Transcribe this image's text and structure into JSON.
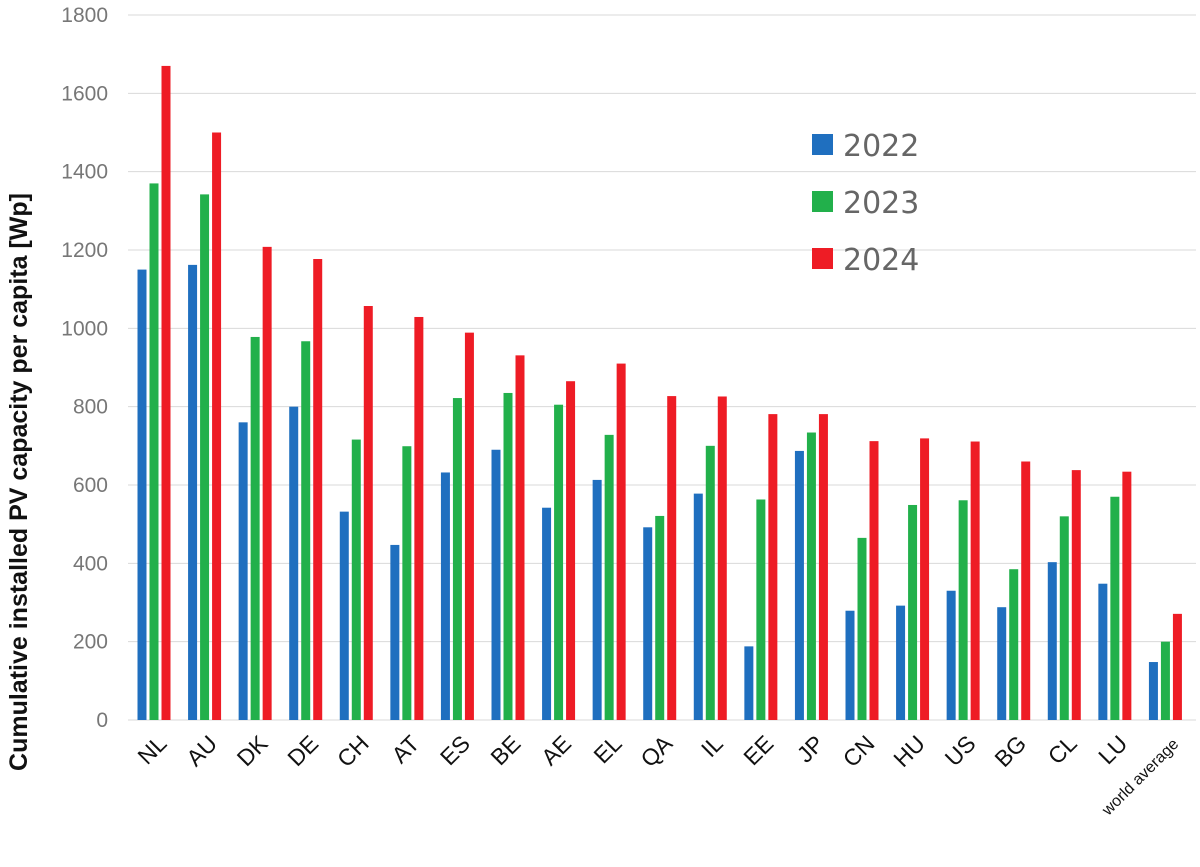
{
  "chart_data": {
    "type": "bar",
    "title": "",
    "xlabel": "",
    "ylabel": "Cumulative installed PV capacity per capita  [Wp]",
    "ylim": [
      0,
      1800
    ],
    "yticks": [
      0,
      200,
      400,
      600,
      800,
      1000,
      1200,
      1400,
      1600,
      1800
    ],
    "grid": true,
    "legend_position": "top-right",
    "categories": [
      "NL",
      "AU",
      "DK",
      "DE",
      "CH",
      "AT",
      "ES",
      "BE",
      "AE",
      "EL",
      "QA",
      "IL",
      "EE",
      "JP",
      "CN",
      "HU",
      "US",
      "BG",
      "CL",
      "LU",
      "world average"
    ],
    "series": [
      {
        "name": "2022",
        "color": "#1f6fbf",
        "values": [
          1150,
          1162,
          760,
          800,
          532,
          447,
          632,
          690,
          542,
          613,
          492,
          578,
          188,
          687,
          279,
          292,
          330,
          288,
          403,
          348,
          148
        ]
      },
      {
        "name": "2023",
        "color": "#22b04b",
        "values": [
          1370,
          1342,
          978,
          967,
          716,
          699,
          822,
          835,
          805,
          728,
          521,
          700,
          563,
          734,
          465,
          549,
          561,
          385,
          520,
          570,
          200
        ]
      },
      {
        "name": "2024",
        "color": "#ee1c25",
        "values": [
          1670,
          1500,
          1208,
          1177,
          1057,
          1029,
          989,
          931,
          865,
          910,
          827,
          826,
          781,
          781,
          712,
          719,
          711,
          660,
          638,
          634,
          271
        ]
      }
    ]
  }
}
